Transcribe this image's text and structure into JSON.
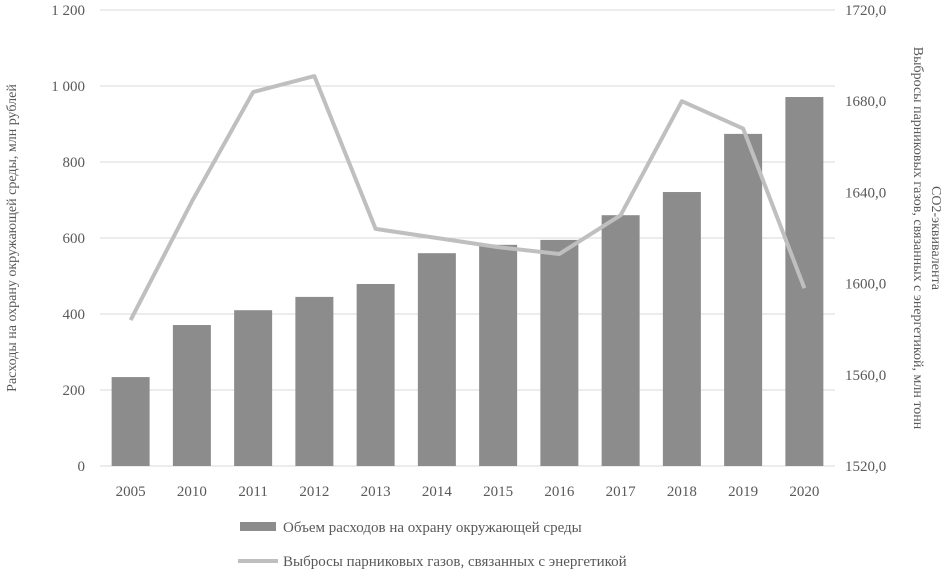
{
  "chart_data": {
    "type": "bar+line",
    "categories": [
      "2005",
      "2010",
      "2011",
      "2012",
      "2013",
      "2014",
      "2015",
      "2016",
      "2017",
      "2018",
      "2019",
      "2020"
    ],
    "series": [
      {
        "name": "Объем расходов на охрану окружающей среды",
        "type": "bar",
        "axis": "left",
        "color": "#8c8c8c",
        "values": [
          234,
          371,
          410,
          445,
          479,
          560,
          582,
          595,
          660,
          721,
          874,
          971
        ]
      },
      {
        "name": "Выбросы парниковых газов, связанных с энергетикой",
        "type": "line",
        "axis": "right",
        "color": "#bfbfbf",
        "values": [
          1584,
          1636,
          1684,
          1691,
          1624,
          1620,
          1616,
          1613,
          1630,
          1680,
          1668,
          1598
        ]
      }
    ],
    "ylabel": "Расходы на охрану окружающей среды, млн рублей",
    "y2label": [
      "Выбросы парниковых газов, связанных с энергетикой, млн тонн",
      "СО2-эквивалента"
    ],
    "ylim": [
      0,
      1200
    ],
    "y2lim": [
      1520,
      1720
    ],
    "yticks": [
      "0",
      "200",
      "400",
      "600",
      "800",
      "1 000",
      "1 200"
    ],
    "y2ticks": [
      "1520,0",
      "1560,0",
      "1600,0",
      "1640,0",
      "1680,0",
      "1720,0"
    ],
    "grid": true,
    "legend_position": "bottom"
  }
}
